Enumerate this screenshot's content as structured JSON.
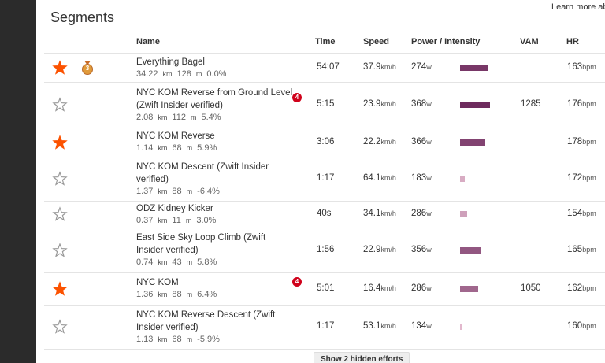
{
  "header": {
    "title": "Segments",
    "link": "Learn more ab"
  },
  "columns": {
    "name": "Name",
    "time": "Time",
    "speed": "Speed",
    "power": "Power / Intensity",
    "vam": "VAM",
    "hr": "HR"
  },
  "units": {
    "distance": "km",
    "elevation": "m",
    "speed": "km/h",
    "power": "w",
    "hr": "bpm"
  },
  "rows": [
    {
      "starred": true,
      "medal": "3",
      "name": "Everything Bagel",
      "distance": "34.22",
      "elevation": "128",
      "grade": "0.0%",
      "badge": null,
      "time": "54:07",
      "speed": "37.9",
      "power": "274",
      "intensity": 35,
      "vam": null,
      "hr": "163"
    },
    {
      "starred": false,
      "medal": null,
      "name": "NYC KOM Reverse from Ground Level (Zwift Insider verified)",
      "distance": "2.08",
      "elevation": "112",
      "grade": "5.4%",
      "badge": "4",
      "time": "5:15",
      "speed": "23.9",
      "power": "368",
      "intensity": 38,
      "vam": "1285",
      "hr": "176"
    },
    {
      "starred": true,
      "medal": null,
      "name": "NYC KOM Reverse",
      "distance": "1.14",
      "elevation": "68",
      "grade": "5.9%",
      "badge": null,
      "time": "3:06",
      "speed": "22.2",
      "power": "366",
      "intensity": 32,
      "vam": null,
      "hr": "178"
    },
    {
      "starred": false,
      "medal": null,
      "name": "NYC KOM Descent (Zwift Insider verified)",
      "distance": "1.37",
      "elevation": "88",
      "grade": "-6.4%",
      "badge": null,
      "time": "1:17",
      "speed": "64.1",
      "power": "183",
      "intensity": 6,
      "vam": null,
      "hr": "172"
    },
    {
      "starred": false,
      "medal": null,
      "name": "ODZ Kidney Kicker",
      "distance": "0.37",
      "elevation": "11",
      "grade": "3.0%",
      "badge": null,
      "time": "40s",
      "speed": "34.1",
      "power": "286",
      "intensity": 9,
      "vam": null,
      "hr": "154"
    },
    {
      "starred": false,
      "medal": null,
      "name": "East Side Sky Loop Climb (Zwift Insider verified)",
      "distance": "0.74",
      "elevation": "43",
      "grade": "5.8%",
      "badge": null,
      "time": "1:56",
      "speed": "22.9",
      "power": "356",
      "intensity": 27,
      "vam": null,
      "hr": "165"
    },
    {
      "starred": true,
      "medal": null,
      "name": "NYC KOM",
      "distance": "1.36",
      "elevation": "88",
      "grade": "6.4%",
      "badge": "4",
      "time": "5:01",
      "speed": "16.4",
      "power": "286",
      "intensity": 23,
      "vam": "1050",
      "hr": "162"
    },
    {
      "starred": false,
      "medal": null,
      "name": "NYC KOM Reverse Descent (Zwift Insider verified)",
      "distance": "1.13",
      "elevation": "68",
      "grade": "-5.9%",
      "badge": null,
      "time": "1:17",
      "speed": "53.1",
      "power": "134",
      "intensity": 3,
      "vam": null,
      "hr": "160"
    }
  ],
  "footer": {
    "button": "Show 2 hidden efforts"
  }
}
